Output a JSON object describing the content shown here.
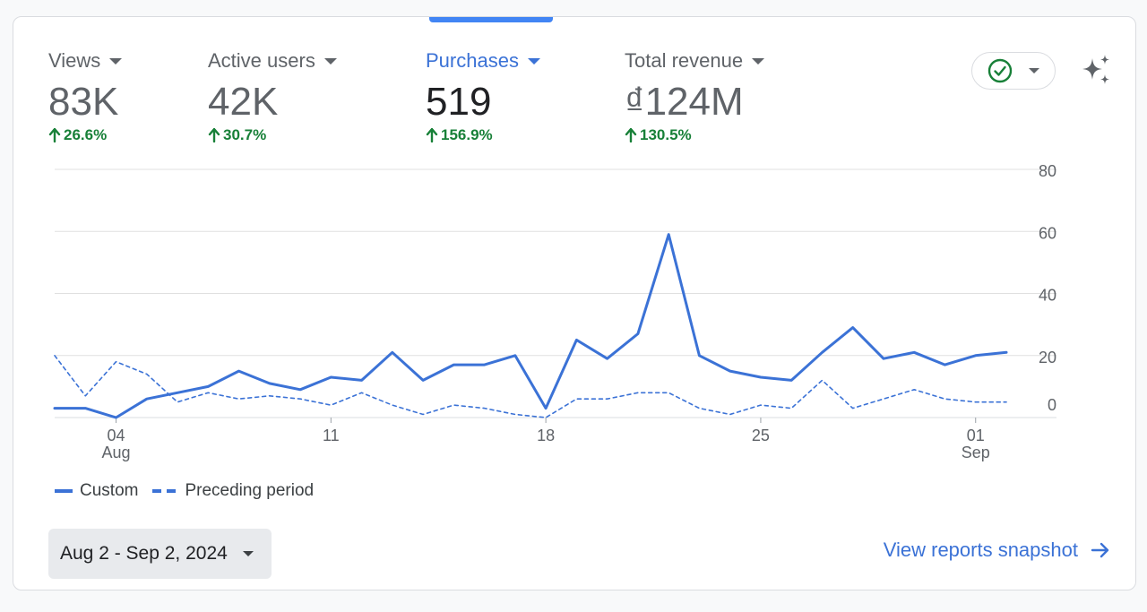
{
  "metrics": [
    {
      "label": "Views",
      "value": "83K",
      "change": "26.6%",
      "active": false
    },
    {
      "label": "Active users",
      "value": "42K",
      "change": "30.7%",
      "active": false
    },
    {
      "label": "Purchases",
      "value": "519",
      "change": "156.9%",
      "active": true
    },
    {
      "label": "Total revenue",
      "value": "₫124M",
      "change": "130.5%",
      "active": false
    }
  ],
  "colors": {
    "accent": "#3b72d6",
    "positive": "#188038",
    "status_ok": "#188038"
  },
  "icons": {
    "status": "check-circle-icon",
    "insights": "sparkle-icon",
    "change": "arrow-up-icon",
    "link": "arrow-right-icon"
  },
  "chart_data": {
    "type": "line",
    "x": [
      "Aug 2",
      "Aug 3",
      "Aug 4",
      "Aug 5",
      "Aug 6",
      "Aug 7",
      "Aug 8",
      "Aug 9",
      "Aug 10",
      "Aug 11",
      "Aug 12",
      "Aug 13",
      "Aug 14",
      "Aug 15",
      "Aug 16",
      "Aug 17",
      "Aug 18",
      "Aug 19",
      "Aug 20",
      "Aug 21",
      "Aug 22",
      "Aug 23",
      "Aug 24",
      "Aug 25",
      "Aug 26",
      "Aug 27",
      "Aug 28",
      "Aug 29",
      "Aug 30",
      "Aug 31",
      "Sep 1",
      "Sep 2"
    ],
    "series": [
      {
        "name": "Custom",
        "style": "solid",
        "values": [
          3,
          3,
          0,
          6,
          8,
          10,
          15,
          11,
          9,
          13,
          12,
          21,
          12,
          17,
          17,
          20,
          3,
          25,
          19,
          27,
          59,
          20,
          15,
          13,
          12,
          21,
          29,
          19,
          21,
          17,
          20,
          21
        ]
      },
      {
        "name": "Preceding period",
        "style": "dashed",
        "values": [
          20,
          7,
          18,
          14,
          5,
          8,
          6,
          7,
          6,
          4,
          8,
          4,
          1,
          4,
          3,
          1,
          0,
          6,
          6,
          8,
          8,
          3,
          1,
          4,
          3,
          12,
          3,
          6,
          9,
          6,
          5,
          5
        ]
      }
    ],
    "y_ticks": [
      "0",
      "20",
      "40",
      "60",
      "80"
    ],
    "x_ticks": [
      {
        "day": "04",
        "month": "Aug",
        "index": 2
      },
      {
        "day": "11",
        "month": "",
        "index": 9
      },
      {
        "day": "18",
        "month": "",
        "index": 16
      },
      {
        "day": "25",
        "month": "",
        "index": 23
      },
      {
        "day": "01",
        "month": "Sep",
        "index": 30
      }
    ],
    "ylim": [
      0,
      80
    ],
    "grid": true,
    "y_axis_position": "right",
    "legend_position": "bottom-left",
    "line_color": "#3b72d6"
  },
  "legend": {
    "custom": "Custom",
    "preceding": "Preceding period"
  },
  "date_range": {
    "label": "Aug 2 - Sep 2, 2024"
  },
  "view_link": {
    "label": "View reports snapshot"
  }
}
